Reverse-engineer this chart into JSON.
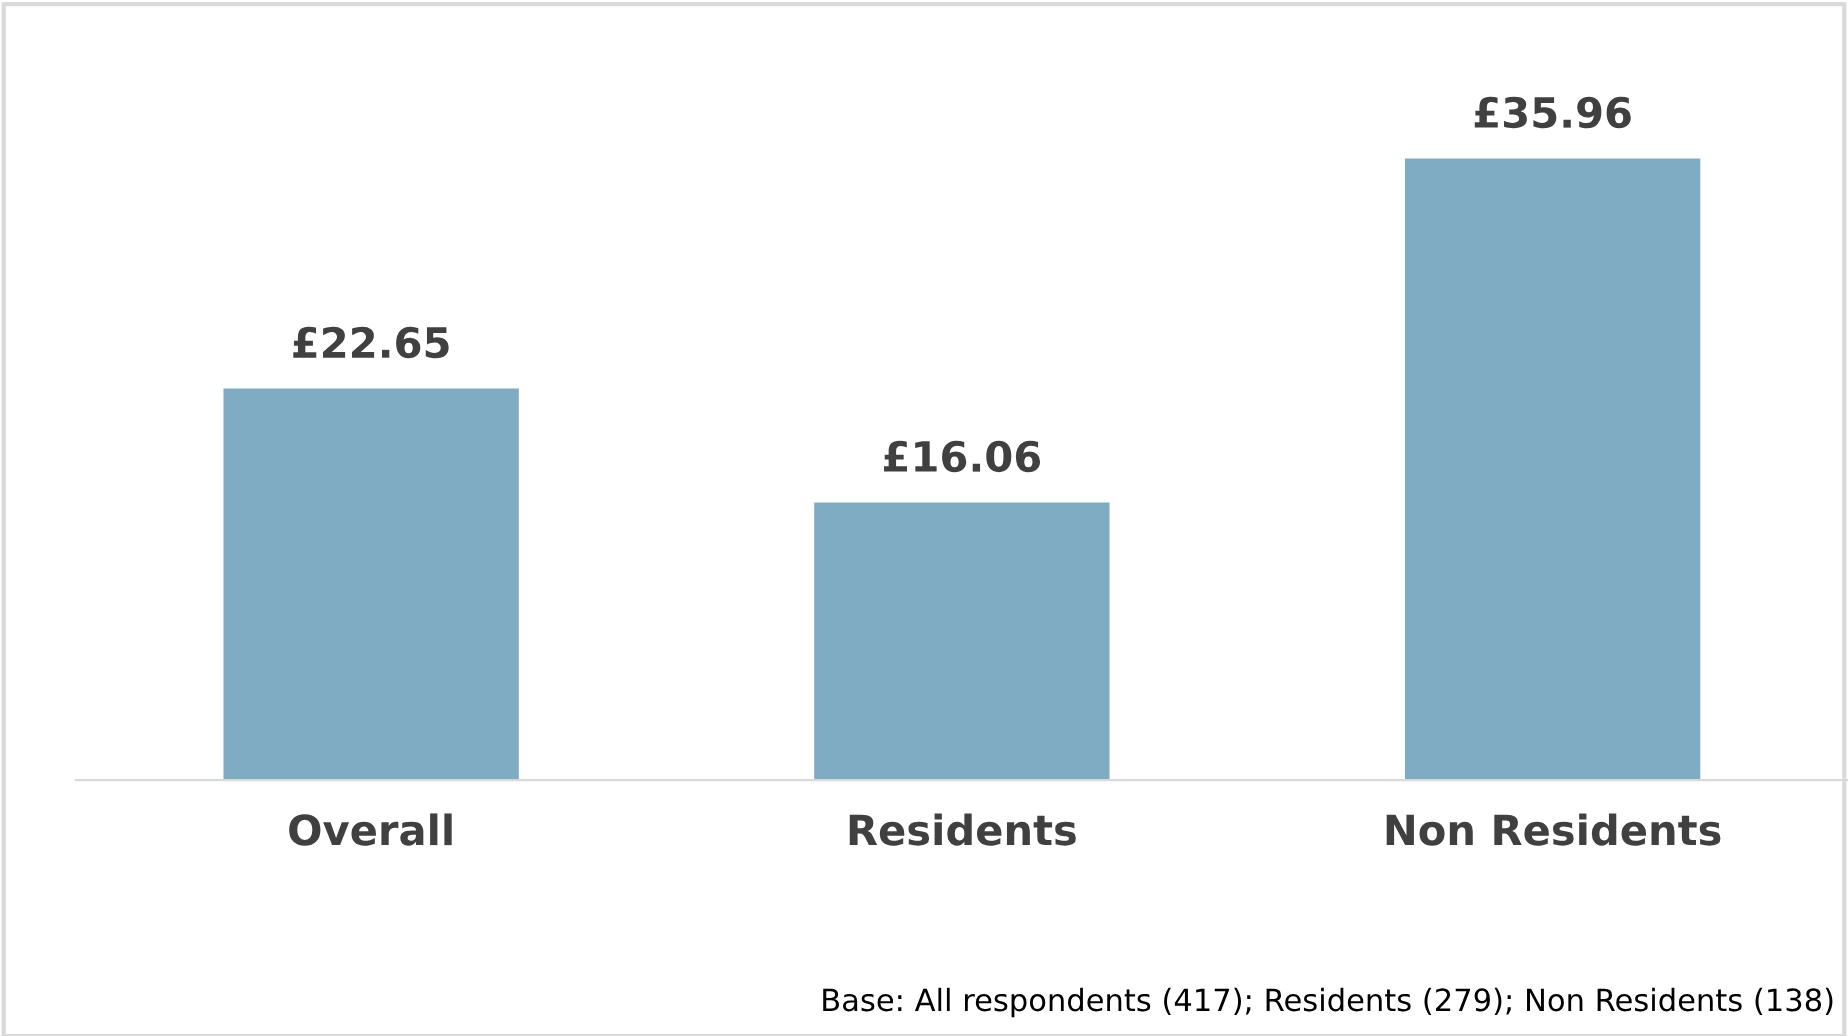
{
  "chart_data": {
    "type": "bar",
    "categories": [
      "Overall",
      "Residents",
      "Non Residents"
    ],
    "values": [
      22.65,
      16.06,
      35.96
    ],
    "value_labels": [
      "£22.65",
      "£16.06",
      "£35.96"
    ],
    "color": "#7facc2",
    "grid": false,
    "legend": false,
    "annotations": [
      "Base: All respondents (417); Residents (279); Non Residents (138)"
    ]
  }
}
